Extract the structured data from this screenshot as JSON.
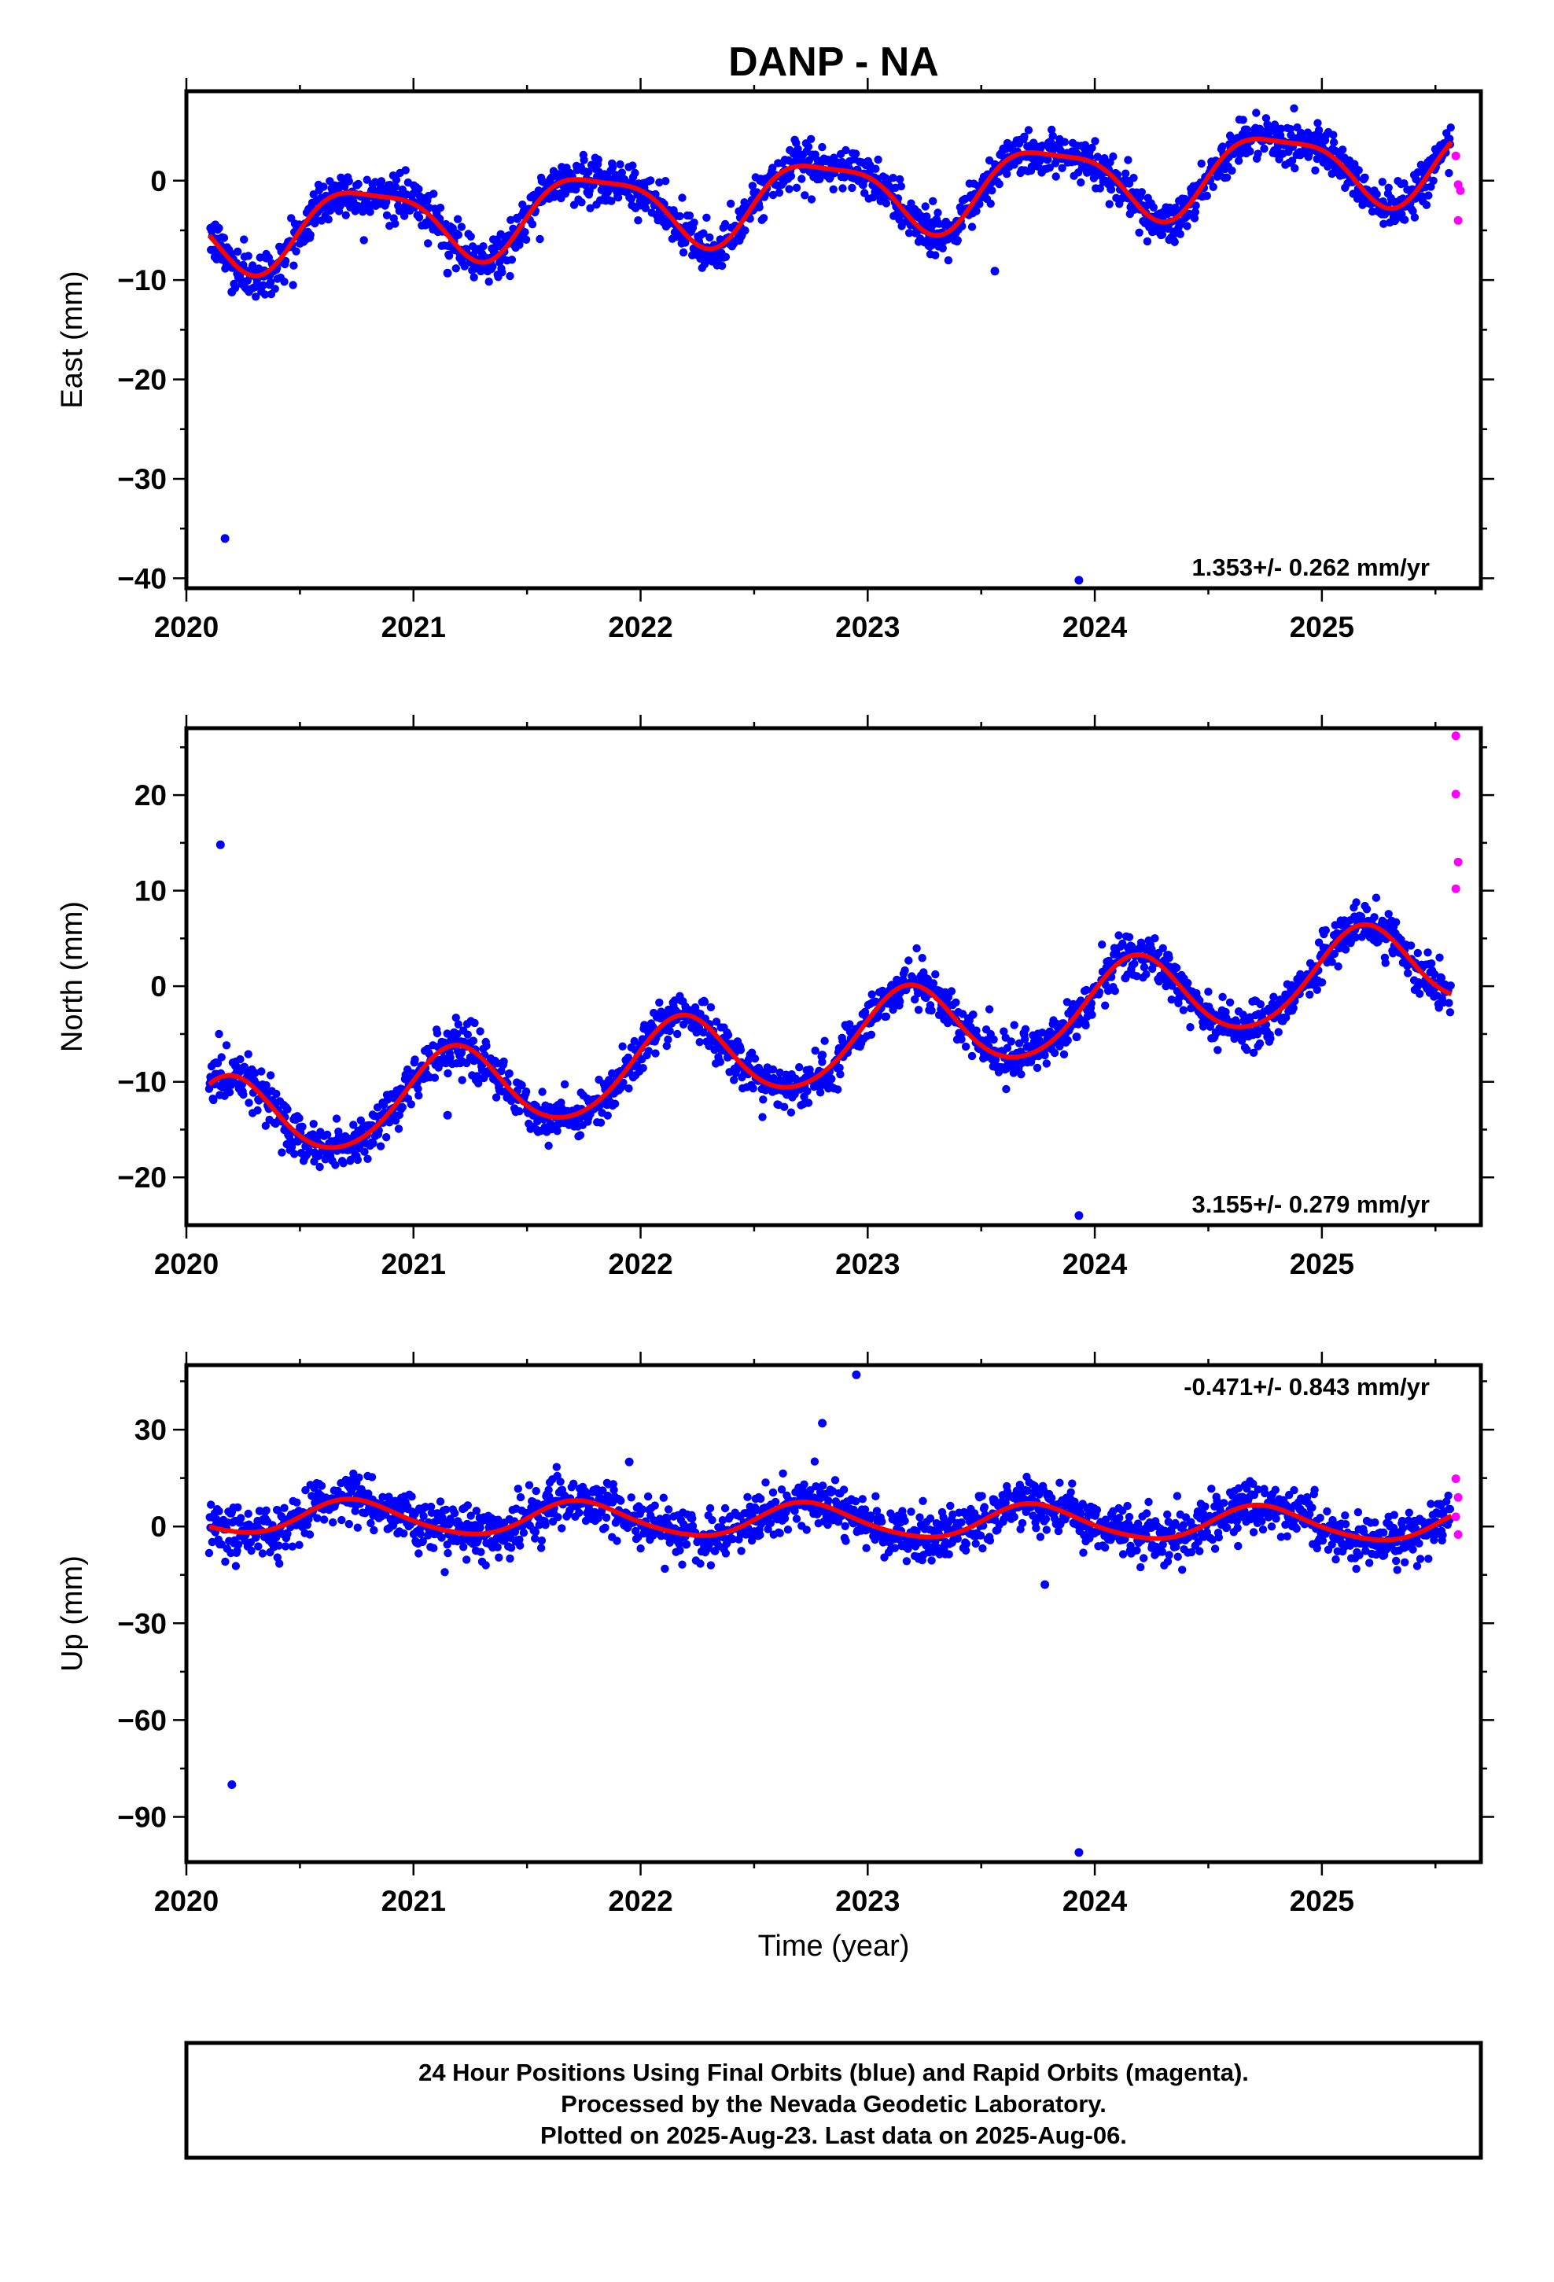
{
  "title": "DANP - NA",
  "colors": {
    "final_points": "#0000ff",
    "rapid_points": "#ff00ff",
    "model_line": "#ff0000",
    "frame": "#000000"
  },
  "x_axis": {
    "label": "Time (year)",
    "range": [
      2020.0,
      2025.7
    ],
    "major_ticks": [
      "2020",
      "2021",
      "2022",
      "2023",
      "2024",
      "2025"
    ],
    "minor_ticks": [
      2020.5,
      2021.5,
      2022.5,
      2023.5,
      2024.5,
      2025.5
    ]
  },
  "footer": {
    "line1": "24 Hour Positions Using Final Orbits (blue) and Rapid Orbits (magenta).",
    "line2": "Processed by the Nevada Geodetic Laboratory.",
    "line3": "Plotted on 2025-Aug-23. Last data on 2025-Aug-06."
  },
  "chart_data": [
    {
      "type": "scatter",
      "component": "east",
      "ylabel": "East (mm)",
      "ylim": [
        -41,
        9
      ],
      "yticks": [
        0,
        -10,
        -20,
        -30,
        -40
      ],
      "yminor": [
        -5,
        -15,
        -25,
        -35
      ],
      "rate_label": "1.353+/- 0.262 mm/yr",
      "data_span": [
        2020.1,
        2025.57
      ],
      "model": {
        "offset": -1.5,
        "rate": 1.353,
        "annual_sin": -3.6,
        "annual_cos": 1.0,
        "semi_sin": 0.8,
        "semi_cos": 0.6,
        "scatter": 1.1
      },
      "outliers": [
        {
          "x": 2020.17,
          "y": -36.0
        },
        {
          "x": 2020.2,
          "y": -11.2
        },
        {
          "x": 2021.15,
          "y": -9.3
        },
        {
          "x": 2023.56,
          "y": -9.1
        },
        {
          "x": 2023.93,
          "y": -40.2
        }
      ],
      "rapid": [
        {
          "x": 2025.59,
          "y": 2.5
        },
        {
          "x": 2025.6,
          "y": -0.4
        },
        {
          "x": 2025.61,
          "y": -1.0
        },
        {
          "x": 2025.6,
          "y": -4.0
        }
      ]
    },
    {
      "type": "scatter",
      "component": "north",
      "ylabel": "North (mm)",
      "ylim": [
        -25,
        27
      ],
      "yticks": [
        20,
        10,
        0,
        -10,
        -20
      ],
      "yminor": [
        25,
        15,
        5,
        -5,
        -15
      ],
      "rate_label": "3.155+/- 0.279 mm/yr",
      "data_span": [
        2020.1,
        2025.57
      ],
      "model": {
        "offset": -6.0,
        "rate": 3.155,
        "annual_sin": 4.0,
        "annual_cos": 2.1,
        "semi_sin": 0.3,
        "semi_cos": -0.3,
        "scatter": 1.2
      },
      "outliers": [
        {
          "x": 2020.15,
          "y": 14.8
        },
        {
          "x": 2021.15,
          "y": -13.5
        },
        {
          "x": 2022.8,
          "y": -7.2
        },
        {
          "x": 2023.75,
          "y": -5.0
        },
        {
          "x": 2023.92,
          "y": -5.3
        },
        {
          "x": 2023.93,
          "y": -24.0
        }
      ],
      "rapid": [
        {
          "x": 2025.59,
          "y": 26.2
        },
        {
          "x": 2025.59,
          "y": 20.1
        },
        {
          "x": 2025.6,
          "y": 13.0
        },
        {
          "x": 2025.59,
          "y": 10.2
        }
      ]
    },
    {
      "type": "scatter",
      "component": "up",
      "ylabel": "Up (mm)",
      "ylim": [
        -104,
        50
      ],
      "yticks": [
        30,
        0,
        -30,
        -60,
        -90
      ],
      "yminor": [
        45,
        15,
        -15,
        -45,
        -75
      ],
      "rate_label": "-0.471+/- 0.843 mm/yr",
      "data_span": [
        2020.1,
        2025.57
      ],
      "model": {
        "offset": 1.8,
        "rate": -0.471,
        "annual_sin": -5.2,
        "annual_cos": -0.5,
        "semi_sin": 0.5,
        "semi_cos": -0.4,
        "scatter": 3.8
      },
      "outliers": [
        {
          "x": 2020.2,
          "y": -80.0
        },
        {
          "x": 2022.8,
          "y": 32.0
        },
        {
          "x": 2022.95,
          "y": 47.0
        },
        {
          "x": 2021.95,
          "y": 20.0
        },
        {
          "x": 2023.78,
          "y": -18.0
        },
        {
          "x": 2023.93,
          "y": -101.0
        }
      ],
      "rapid": [
        {
          "x": 2025.59,
          "y": 14.8
        },
        {
          "x": 2025.6,
          "y": 9.0
        },
        {
          "x": 2025.59,
          "y": 3.0
        },
        {
          "x": 2025.6,
          "y": -2.5
        }
      ]
    }
  ]
}
